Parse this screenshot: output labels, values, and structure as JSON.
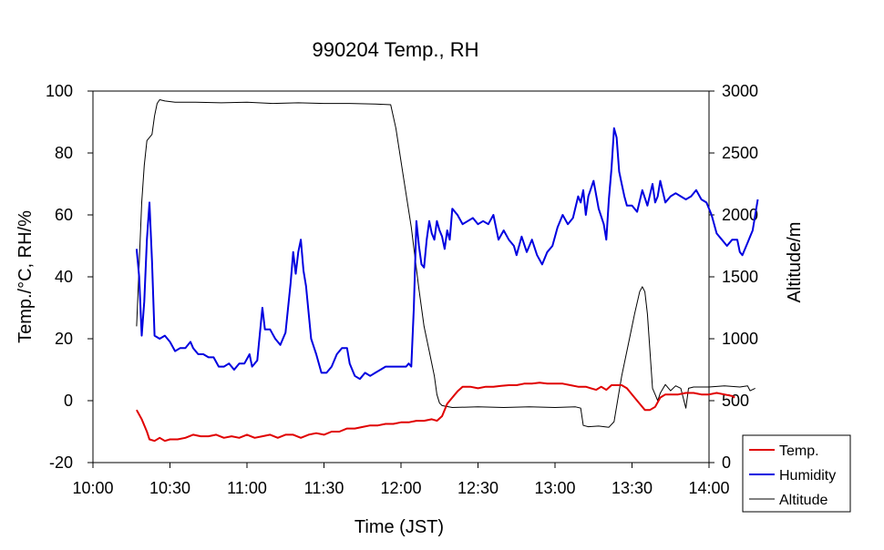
{
  "chart_data": {
    "type": "line",
    "title": "990204 Temp., RH",
    "xlabel": "Time (JST)",
    "ylabel_left": "Temp./°C, RH/%",
    "ylabel_right": "Altitude/m",
    "x_ticks": [
      "10:00",
      "10:30",
      "11:00",
      "11:30",
      "12:00",
      "12:30",
      "13:00",
      "13:30",
      "14:00"
    ],
    "y_left_ticks": [
      "100",
      "80",
      "60",
      "40",
      "20",
      "0",
      "-20"
    ],
    "y_right_ticks": [
      "3000",
      "2500",
      "2000",
      "1500",
      "1000",
      "500",
      "0"
    ],
    "xlim_minutes": [
      600,
      840
    ],
    "ylim_left": [
      -20,
      100
    ],
    "ylim_right": [
      0,
      3000
    ],
    "legend_position": "bottom-right",
    "series": [
      {
        "name": "Temp.",
        "axis": "left",
        "color": "#e00000",
        "points": [
          [
            617,
            -3
          ],
          [
            619,
            -6
          ],
          [
            621,
            -10
          ],
          [
            622,
            -12.5
          ],
          [
            624,
            -13
          ],
          [
            626,
            -12
          ],
          [
            628,
            -13
          ],
          [
            630,
            -12.5
          ],
          [
            633,
            -12.5
          ],
          [
            636,
            -12
          ],
          [
            639,
            -11
          ],
          [
            642,
            -11.5
          ],
          [
            645,
            -11.5
          ],
          [
            648,
            -11
          ],
          [
            651,
            -12
          ],
          [
            654,
            -11.5
          ],
          [
            657,
            -12
          ],
          [
            660,
            -11
          ],
          [
            663,
            -12
          ],
          [
            666,
            -11.5
          ],
          [
            669,
            -11
          ],
          [
            672,
            -12
          ],
          [
            675,
            -11
          ],
          [
            678,
            -11
          ],
          [
            681,
            -12
          ],
          [
            684,
            -11
          ],
          [
            687,
            -10.5
          ],
          [
            690,
            -11
          ],
          [
            693,
            -10
          ],
          [
            696,
            -10
          ],
          [
            699,
            -9
          ],
          [
            702,
            -9
          ],
          [
            705,
            -8.5
          ],
          [
            708,
            -8
          ],
          [
            711,
            -8
          ],
          [
            714,
            -7.5
          ],
          [
            717,
            -7.5
          ],
          [
            720,
            -7
          ],
          [
            723,
            -7
          ],
          [
            726,
            -6.5
          ],
          [
            729,
            -6.5
          ],
          [
            732,
            -6
          ],
          [
            734,
            -6.5
          ],
          [
            736,
            -5
          ],
          [
            738,
            -1
          ],
          [
            740,
            1
          ],
          [
            742,
            3
          ],
          [
            744,
            4.5
          ],
          [
            747,
            4.5
          ],
          [
            750,
            4
          ],
          [
            753,
            4.5
          ],
          [
            756,
            4.5
          ],
          [
            759,
            4.8
          ],
          [
            762,
            5
          ],
          [
            765,
            5
          ],
          [
            768,
            5.5
          ],
          [
            771,
            5.5
          ],
          [
            774,
            5.8
          ],
          [
            777,
            5.5
          ],
          [
            780,
            5.5
          ],
          [
            783,
            5.5
          ],
          [
            786,
            5
          ],
          [
            789,
            4.5
          ],
          [
            792,
            4.5
          ],
          [
            794,
            4
          ],
          [
            796,
            3.5
          ],
          [
            798,
            4.5
          ],
          [
            800,
            3.5
          ],
          [
            802,
            5
          ],
          [
            804,
            5
          ],
          [
            806,
            5
          ],
          [
            808,
            4
          ],
          [
            810,
            2
          ],
          [
            813,
            -1
          ],
          [
            815,
            -3
          ],
          [
            817,
            -3
          ],
          [
            819,
            -2
          ],
          [
            821,
            1
          ],
          [
            823,
            2
          ],
          [
            825,
            2
          ],
          [
            828,
            2
          ],
          [
            831,
            2.5
          ],
          [
            834,
            2.5
          ],
          [
            837,
            2
          ],
          [
            840,
            2
          ],
          [
            843,
            2.5
          ],
          [
            846,
            2
          ],
          [
            849,
            1.5
          ],
          [
            850,
            1
          ]
        ]
      },
      {
        "name": "Humidity",
        "axis": "left",
        "color": "#0000e0",
        "points": [
          [
            617,
            49
          ],
          [
            618,
            40
          ],
          [
            619,
            21
          ],
          [
            620,
            32
          ],
          [
            621,
            52
          ],
          [
            622,
            64
          ],
          [
            623,
            45
          ],
          [
            624,
            21
          ],
          [
            626,
            20
          ],
          [
            628,
            21
          ],
          [
            630,
            19
          ],
          [
            632,
            16
          ],
          [
            634,
            17
          ],
          [
            636,
            17
          ],
          [
            638,
            19
          ],
          [
            639,
            17
          ],
          [
            641,
            15
          ],
          [
            643,
            15
          ],
          [
            645,
            14
          ],
          [
            647,
            14
          ],
          [
            649,
            11
          ],
          [
            651,
            11
          ],
          [
            653,
            12
          ],
          [
            655,
            10
          ],
          [
            657,
            12
          ],
          [
            659,
            12
          ],
          [
            661,
            15
          ],
          [
            662,
            11
          ],
          [
            664,
            13
          ],
          [
            666,
            30
          ],
          [
            667,
            23
          ],
          [
            669,
            23
          ],
          [
            671,
            20
          ],
          [
            673,
            18
          ],
          [
            675,
            22
          ],
          [
            677,
            38
          ],
          [
            678,
            48
          ],
          [
            679,
            41
          ],
          [
            680,
            48
          ],
          [
            681,
            52
          ],
          [
            682,
            42
          ],
          [
            683,
            37
          ],
          [
            685,
            20
          ],
          [
            687,
            15
          ],
          [
            689,
            9
          ],
          [
            691,
            9
          ],
          [
            693,
            11
          ],
          [
            695,
            15
          ],
          [
            697,
            17
          ],
          [
            699,
            17
          ],
          [
            700,
            12
          ],
          [
            702,
            8
          ],
          [
            704,
            7
          ],
          [
            706,
            9
          ],
          [
            708,
            8
          ],
          [
            710,
            9
          ],
          [
            712,
            10
          ],
          [
            714,
            11
          ],
          [
            716,
            11
          ],
          [
            718,
            11
          ],
          [
            720,
            11
          ],
          [
            722,
            11
          ],
          [
            723,
            12
          ],
          [
            724,
            11
          ],
          [
            725,
            30
          ],
          [
            726,
            58
          ],
          [
            727,
            50
          ],
          [
            728,
            44
          ],
          [
            729,
            43
          ],
          [
            730,
            52
          ],
          [
            731,
            58
          ],
          [
            732,
            54
          ],
          [
            733,
            52
          ],
          [
            734,
            58
          ],
          [
            735,
            55
          ],
          [
            736,
            53
          ],
          [
            737,
            49
          ],
          [
            738,
            55
          ],
          [
            739,
            52
          ],
          [
            740,
            62
          ],
          [
            742,
            60
          ],
          [
            744,
            57
          ],
          [
            746,
            58
          ],
          [
            748,
            59
          ],
          [
            750,
            57
          ],
          [
            752,
            58
          ],
          [
            754,
            57
          ],
          [
            756,
            60
          ],
          [
            758,
            52
          ],
          [
            760,
            55
          ],
          [
            762,
            52
          ],
          [
            764,
            50
          ],
          [
            765,
            47
          ],
          [
            767,
            53
          ],
          [
            769,
            48
          ],
          [
            771,
            52
          ],
          [
            773,
            47
          ],
          [
            775,
            44
          ],
          [
            777,
            48
          ],
          [
            779,
            50
          ],
          [
            781,
            56
          ],
          [
            783,
            60
          ],
          [
            785,
            57
          ],
          [
            787,
            59
          ],
          [
            789,
            66
          ],
          [
            790,
            64
          ],
          [
            791,
            68
          ],
          [
            792,
            60
          ],
          [
            793,
            66
          ],
          [
            795,
            71
          ],
          [
            797,
            62
          ],
          [
            799,
            57
          ],
          [
            800,
            52
          ],
          [
            801,
            65
          ],
          [
            802,
            75
          ],
          [
            803,
            88
          ],
          [
            804,
            85
          ],
          [
            805,
            74
          ],
          [
            806,
            70
          ],
          [
            807,
            66
          ],
          [
            808,
            63
          ],
          [
            810,
            63
          ],
          [
            812,
            61
          ],
          [
            814,
            68
          ],
          [
            816,
            63
          ],
          [
            818,
            70
          ],
          [
            819,
            64
          ],
          [
            820,
            66
          ],
          [
            821,
            71
          ],
          [
            823,
            64
          ],
          [
            825,
            66
          ],
          [
            827,
            67
          ],
          [
            829,
            66
          ],
          [
            831,
            65
          ],
          [
            833,
            66
          ],
          [
            835,
            68
          ],
          [
            837,
            65
          ],
          [
            839,
            64
          ],
          [
            841,
            60
          ],
          [
            843,
            54
          ],
          [
            845,
            52
          ],
          [
            847,
            50
          ],
          [
            849,
            52
          ],
          [
            851,
            52
          ],
          [
            852,
            48
          ],
          [
            853,
            47
          ],
          [
            855,
            51
          ],
          [
            856,
            53
          ],
          [
            857,
            55
          ],
          [
            858,
            60
          ],
          [
            859,
            65
          ]
        ]
      },
      {
        "name": "Altitude",
        "axis": "right",
        "color": "#000000",
        "points": [
          [
            617,
            1100
          ],
          [
            618,
            1600
          ],
          [
            619,
            2100
          ],
          [
            620,
            2400
          ],
          [
            621,
            2600
          ],
          [
            623,
            2650
          ],
          [
            624,
            2800
          ],
          [
            625,
            2900
          ],
          [
            626,
            2930
          ],
          [
            628,
            2920
          ],
          [
            632,
            2910
          ],
          [
            640,
            2910
          ],
          [
            650,
            2905
          ],
          [
            660,
            2910
          ],
          [
            670,
            2900
          ],
          [
            680,
            2905
          ],
          [
            690,
            2900
          ],
          [
            700,
            2900
          ],
          [
            710,
            2895
          ],
          [
            716,
            2890
          ],
          [
            718,
            2700
          ],
          [
            721,
            2300
          ],
          [
            724,
            1900
          ],
          [
            727,
            1400
          ],
          [
            729,
            1100
          ],
          [
            731,
            900
          ],
          [
            733,
            700
          ],
          [
            734,
            550
          ],
          [
            735,
            480
          ],
          [
            736,
            460
          ],
          [
            740,
            445
          ],
          [
            750,
            450
          ],
          [
            760,
            445
          ],
          [
            770,
            450
          ],
          [
            780,
            445
          ],
          [
            788,
            450
          ],
          [
            790,
            440
          ],
          [
            791,
            300
          ],
          [
            793,
            290
          ],
          [
            797,
            295
          ],
          [
            801,
            285
          ],
          [
            803,
            330
          ],
          [
            806,
            700
          ],
          [
            809,
            1000
          ],
          [
            811,
            1200
          ],
          [
            813,
            1380
          ],
          [
            814,
            1420
          ],
          [
            815,
            1380
          ],
          [
            816,
            1200
          ],
          [
            817,
            900
          ],
          [
            818,
            600
          ],
          [
            819,
            550
          ],
          [
            820,
            500
          ],
          [
            821,
            560
          ],
          [
            823,
            630
          ],
          [
            825,
            580
          ],
          [
            827,
            620
          ],
          [
            829,
            600
          ],
          [
            831,
            440
          ],
          [
            832,
            600
          ],
          [
            834,
            610
          ],
          [
            840,
            610
          ],
          [
            846,
            620
          ],
          [
            852,
            610
          ],
          [
            855,
            620
          ],
          [
            856,
            580
          ],
          [
            858,
            600
          ]
        ]
      }
    ]
  }
}
